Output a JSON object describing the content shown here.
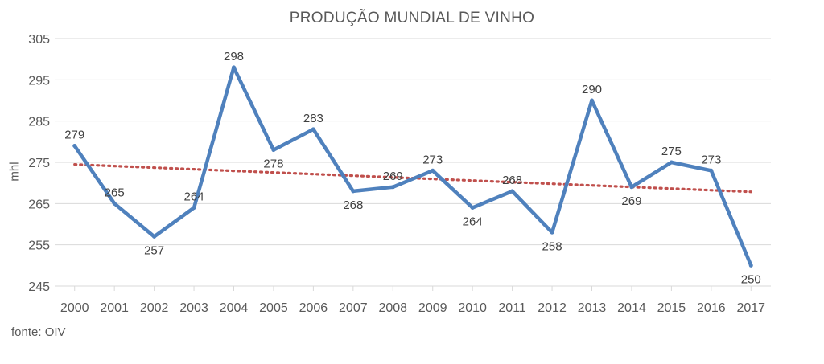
{
  "chart_data": {
    "type": "line",
    "title": "PRODUÇÃO MUNDIAL DE VINHO",
    "ylabel": "mhl",
    "xlabel": "",
    "categories": [
      "2000",
      "2001",
      "2002",
      "2003",
      "2004",
      "2005",
      "2006",
      "2007",
      "2008",
      "2009",
      "2010",
      "2011",
      "2012",
      "2013",
      "2014",
      "2015",
      "2016",
      "2017"
    ],
    "series": [
      {
        "values": [
          279,
          265,
          257,
          264,
          298,
          278,
          283,
          268,
          269,
          273,
          264,
          268,
          258,
          290,
          269,
          275,
          273,
          250
        ],
        "color": "#4f81bd"
      }
    ],
    "trendline": {
      "style": "dotted",
      "color": "#c0504d",
      "type": "linear"
    },
    "ylim": [
      245,
      305
    ],
    "yticks": [
      245,
      255,
      265,
      275,
      285,
      295,
      305
    ],
    "grid": true,
    "legend": "none"
  },
  "source": "fonte: OIV"
}
